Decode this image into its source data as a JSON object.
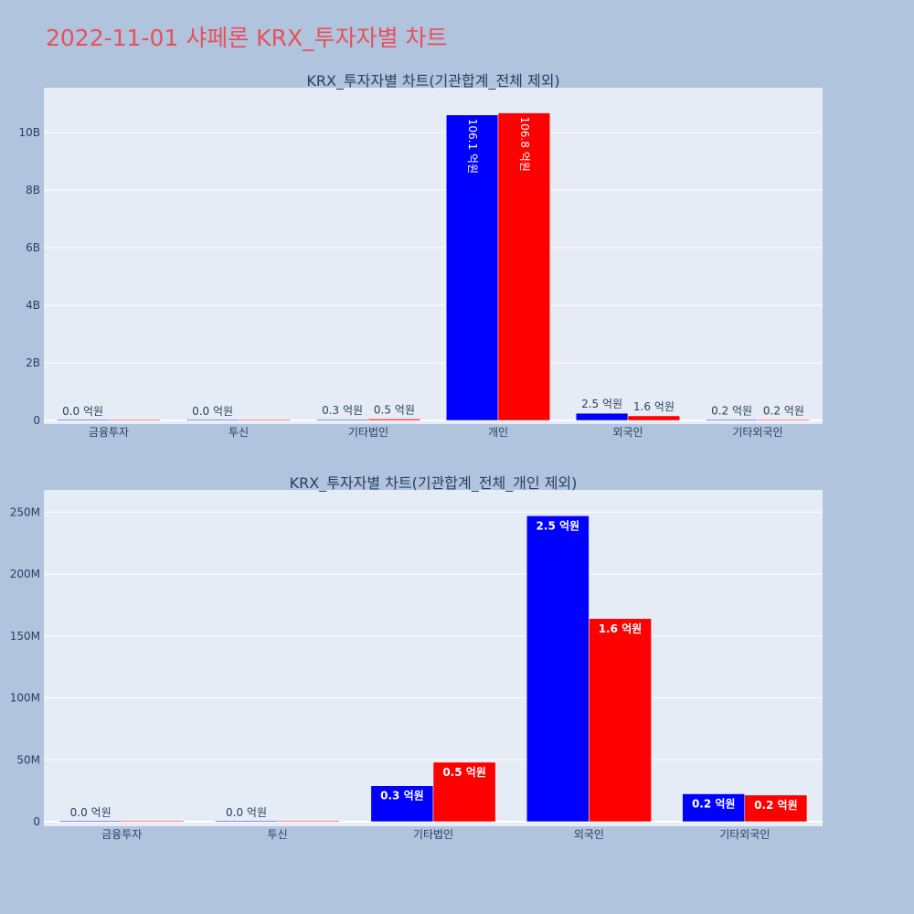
{
  "page_title": "2022-11-01 샤페론 KRX_투자자별 차트",
  "colors": {
    "series_a": "#0000ff",
    "series_b": "#ff0000",
    "plot_bg": "#e5ecf6",
    "page_bg": "#b0c4de",
    "title": "#e8505b"
  },
  "chart_data": [
    {
      "type": "bar",
      "title": "KRX_투자자별 차트(기관합계_전체 제외)",
      "categories": [
        "금융투자",
        "투신",
        "기타법인",
        "개인",
        "외국인",
        "기타외국인"
      ],
      "series": [
        {
          "values": [
            0,
            0,
            30000000,
            10610000000,
            250000000,
            20000000
          ],
          "labels": [
            "0.0 억원",
            "0.0 억원",
            "0.3 억원",
            "106.1 억원",
            "2.5 억원",
            "0.2 억원"
          ]
        },
        {
          "values": [
            0,
            0,
            50000000,
            10680000000,
            160000000,
            20000000
          ],
          "labels": [
            "",
            "",
            "0.5 억원",
            "106.8 억원",
            "1.6 억원",
            "0.2 억원"
          ]
        }
      ],
      "ylim": [
        0,
        11300000000
      ],
      "yticks": [
        0,
        2000000000,
        4000000000,
        6000000000,
        8000000000,
        10000000000
      ],
      "ytick_labels": [
        "0",
        "2B",
        "4B",
        "6B",
        "8B",
        "10B"
      ],
      "grid": true
    },
    {
      "type": "bar",
      "title": "KRX_투자자별 차트(기관합계_전체_개인 제외)",
      "categories": [
        "금융투자",
        "투신",
        "기타법인",
        "외국인",
        "기타외국인"
      ],
      "series": [
        {
          "values": [
            0,
            0,
            29000000,
            247000000,
            22500000
          ],
          "labels": [
            "0.0 억원",
            "0.0 억원",
            "0.3 억원",
            "2.5 억원",
            "0.2 억원"
          ]
        },
        {
          "values": [
            0,
            0,
            48000000,
            164000000,
            21500000
          ],
          "labels": [
            "",
            "",
            "0.5 억원",
            "1.6 억원",
            "0.2 억원"
          ]
        }
      ],
      "ylim": [
        0,
        262000000
      ],
      "yticks": [
        0,
        50000000,
        100000000,
        150000000,
        200000000,
        250000000
      ],
      "ytick_labels": [
        "0",
        "50M",
        "100M",
        "150M",
        "200M",
        "250M"
      ],
      "grid": true
    }
  ]
}
